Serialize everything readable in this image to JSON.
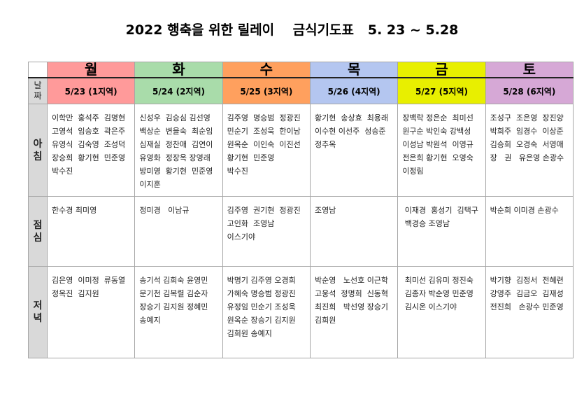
{
  "title": "2022 행축을 위한 릴레이    금식기도표   5. 23 ~ 5.28",
  "row_labels": {
    "date": [
      "날",
      "짜"
    ],
    "breakfast": [
      "아",
      "침"
    ],
    "lunch": [
      "점",
      "심"
    ],
    "dinner": [
      "저",
      "녁"
    ]
  },
  "days": [
    {
      "day": "월",
      "date": "5/23 (1지역)",
      "color": "#ff9a9a",
      "breakfast": [
        "이학만  홍석주  김명현",
        "고영석  임승호  곽은주",
        "유영식  김숙영  조성덕",
        "장승희  황기현  민준영",
        "박수진"
      ],
      "lunch": [
        "한수경 최미영"
      ],
      "dinner": [
        "김은영  이미정  류동열",
        "정옥진  김지원"
      ]
    },
    {
      "day": "화",
      "date": "5/24 (2지역)",
      "color": "#a9dcaa",
      "breakfast": [
        "신성우  김승심 김선영",
        "백상순  변을숙  최순임",
        "심재실  정찬애  김연이",
        "유영화  정장옥 장영래",
        "방미영  황기현  민준영",
        "이지훈"
      ],
      "lunch": [
        "정미경   이남규"
      ],
      "dinner": [
        "송기석 김희숙 윤영민",
        "문기천 김복렬 김순자",
        "장승기 김지원 정혜민",
        "송예지"
      ]
    },
    {
      "day": "수",
      "date": "5/25 (3지역)",
      "color": "#ffa05e",
      "breakfast": [
        "김주영  명승범  정광진",
        "민순기  조성욱  한이남",
        "원옥순  이인숙  이진선",
        "황기현  민준영",
        "박수진"
      ],
      "lunch": [
        "김주영  권기현  정광진",
        "고인화  조영남",
        "이스기야"
      ],
      "dinner": [
        "박명기 김주영 오경희",
        "가혜숙 명승범 정광진",
        "유정임 민순기 조성욱",
        "원옥순 장승기 김지원",
        "김희원 송예지"
      ]
    },
    {
      "day": "목",
      "date": "5/26 (4지역)",
      "color": "#b4c6f0",
      "breakfast": [
        "황기현  송상효  최용래",
        "이수현 이선주  성승준",
        "정추옥"
      ],
      "lunch": [
        "조영남"
      ],
      "dinner": [
        "박순영   노선호 이근학",
        "고웅석  정명희  신동혁",
        "최진희   박선영 장승기",
        "김희원"
      ]
    },
    {
      "day": "금",
      "date": "5/27 (5지역)",
      "color": "#e8ef00",
      "breakfast": [
        "장백락 정은순  최미선",
        "원구순 박인숙 강백성",
        "이성남 박원석  이영규",
        "전은희 황기현  오영숙",
        "이정림"
      ],
      "lunch": [
        " 이재경  홍성기  김택구",
        " 백경승 조영남"
      ],
      "dinner": [
        " 최미선 김유미 정진숙",
        " 김종자 박순영 민준영",
        " 김시온 이스기야"
      ]
    },
    {
      "day": "토",
      "date": "5/28 (6지역)",
      "color": "#d6a8d6",
      "breakfast": [
        "조성구  조은영  장진양",
        "박희주  임경수  이상준",
        "김승희  오경숙  서영애",
        "장   권   유은영 손광수"
      ],
      "lunch": [
        "박순희 이미경 손광수"
      ],
      "dinner": [
        "박기향  김정서  전혜련",
        "강영주  김금오  김재성",
        "전진희   손광수 민준영"
      ]
    }
  ]
}
